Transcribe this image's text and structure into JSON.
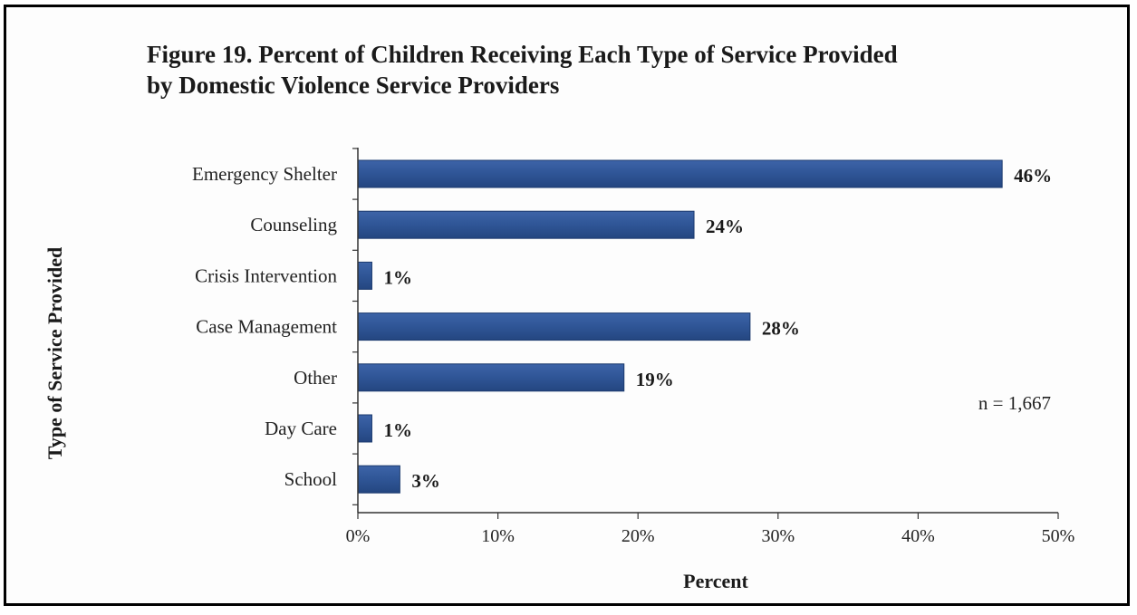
{
  "chart_data": {
    "type": "bar",
    "orientation": "horizontal",
    "title_line1": "Figure 19. Percent of Children  Receiving Each Type of Service Provided",
    "title_line2": "by Domestic Violence Service Providers",
    "xlabel": "Percent",
    "ylabel": "Type of Service  Provided",
    "categories": [
      "Emergency Shelter",
      "Counseling",
      "Crisis Intervention",
      "Case Management",
      "Other",
      "Day Care",
      "School"
    ],
    "values": [
      46,
      24,
      1,
      28,
      19,
      1,
      3
    ],
    "value_labels": [
      "46%",
      "24%",
      "1%",
      "28%",
      "19%",
      "1%",
      "3%"
    ],
    "xlim": [
      0,
      50
    ],
    "xticks": [
      "0%",
      "10%",
      "20%",
      "30%",
      "40%",
      "50%"
    ],
    "annotation": "n = 1,667",
    "bar_color": "#2f5596",
    "grid": false
  }
}
